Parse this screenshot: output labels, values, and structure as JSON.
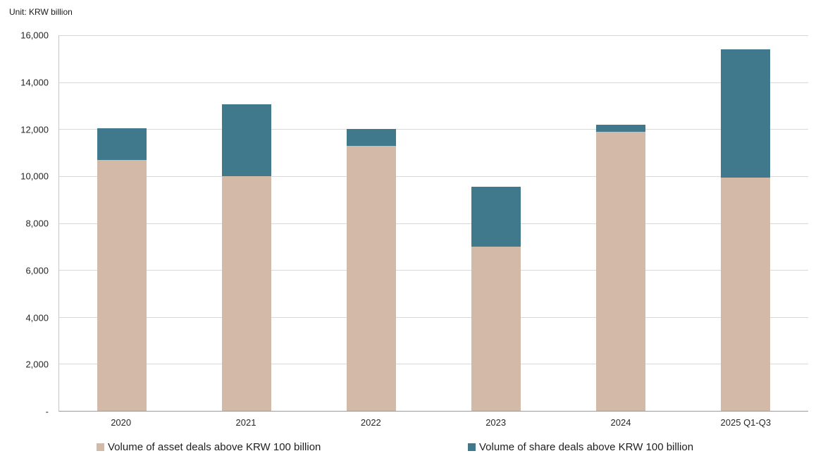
{
  "unit_label": "Unit: KRW billion",
  "colors": {
    "asset": "#d3b9a7",
    "share": "#41798c",
    "gridline": "#d9d9d9",
    "axis_line": "#9a9a9a",
    "label_text": "#262626"
  },
  "chart_data": {
    "type": "bar",
    "stacked": true,
    "title": "",
    "unit": "Unit: KRW billion",
    "categories": [
      "2020",
      "2021",
      "2022",
      "2023",
      "2024",
      "2025 Q1-Q3"
    ],
    "series": [
      {
        "name": "Volume of asset deals above KRW 100 billion",
        "color": "#d3b9a7",
        "values": [
          10700,
          10000,
          11300,
          7000,
          11900,
          9950
        ]
      },
      {
        "name": "Volume of share deals above KRW 100 billion",
        "color": "#41798c",
        "values": [
          1350,
          3050,
          700,
          2550,
          300,
          5450
        ]
      }
    ],
    "totals": [
      12050,
      13050,
      12000,
      9550,
      12200,
      15400
    ],
    "ylim": [
      0,
      16000
    ],
    "ytick_step": 2000,
    "yticks": [
      {
        "label": "16,000",
        "value": 16000
      },
      {
        "label": "14,000",
        "value": 14000
      },
      {
        "label": "12,000",
        "value": 12000
      },
      {
        "label": "10,000",
        "value": 10000
      },
      {
        "label": "8,000",
        "value": 8000
      },
      {
        "label": "6,000",
        "value": 6000
      },
      {
        "label": "4,000",
        "value": 4000
      },
      {
        "label": "2,000",
        "value": 2000
      },
      {
        "label": "-",
        "value": 0
      }
    ],
    "grid": true,
    "legend_position": "bottom"
  },
  "legend": {
    "items": [
      {
        "label": "Volume of asset deals above KRW 100 billion",
        "color": "#d3b9a7"
      },
      {
        "label": "Volume of share deals above KRW 100 billion",
        "color": "#41798c"
      }
    ]
  }
}
